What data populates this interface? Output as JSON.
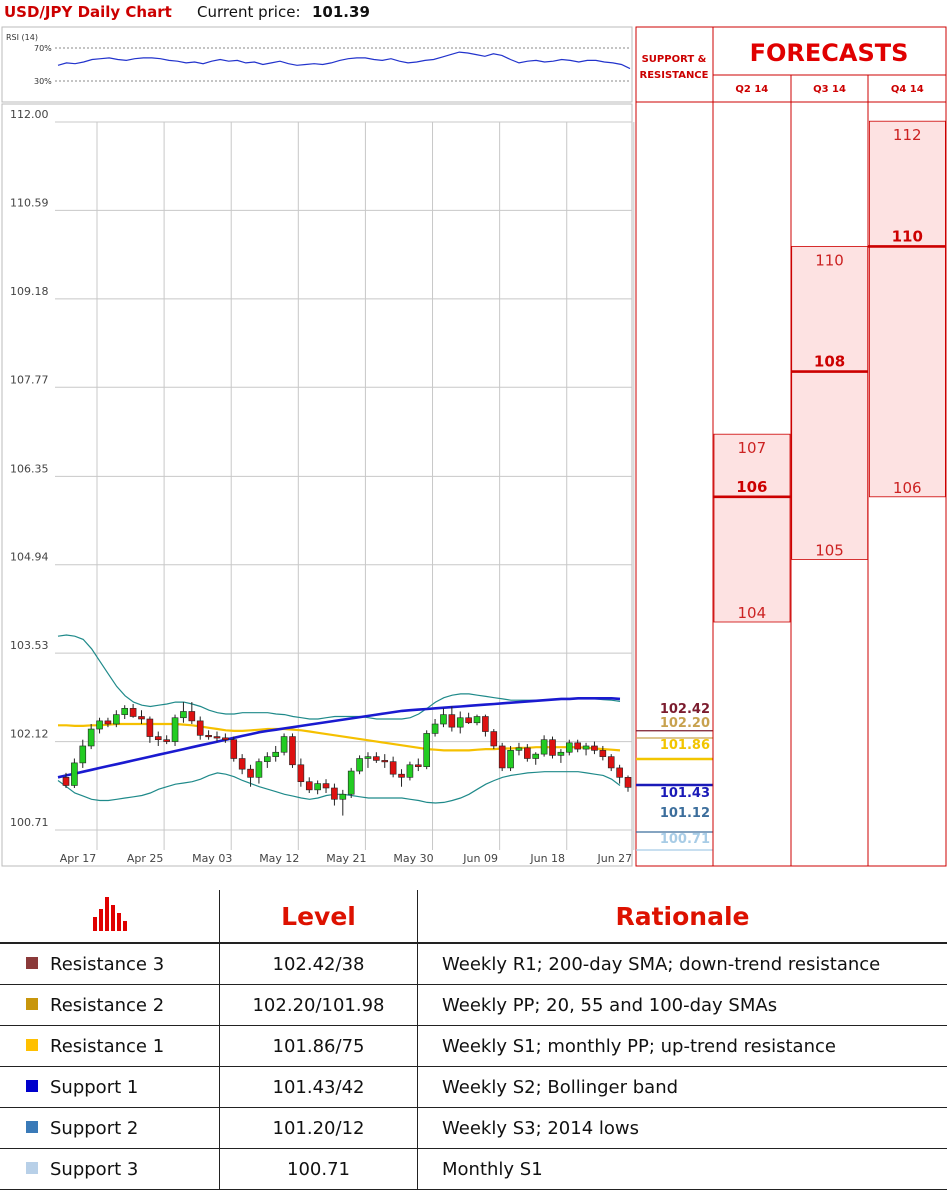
{
  "header": {
    "title": "USD/JPY Daily Chart",
    "price_label": "Current price:",
    "price_value": "101.39"
  },
  "rsi": {
    "label": "RSI (14)",
    "upper": "70%",
    "lower": "30%",
    "values": [
      49,
      52,
      51,
      53,
      56,
      57,
      58,
      56,
      55,
      57,
      58,
      58,
      57,
      55,
      54,
      52,
      53,
      51,
      54,
      56,
      54,
      55,
      52,
      53,
      50,
      52,
      54,
      51,
      49,
      50,
      51,
      50,
      52,
      55,
      57,
      58,
      58,
      56,
      55,
      57,
      54,
      52,
      53,
      55,
      56,
      59,
      62,
      65,
      64,
      62,
      60,
      63,
      61,
      56,
      52,
      54,
      55,
      53,
      54,
      56,
      55,
      53,
      55,
      55,
      53,
      52,
      50,
      45
    ]
  },
  "chart_data": {
    "type": "candlestick",
    "title": "USD/JPY Daily Chart",
    "y_ticks": [
      "112.00",
      "110.59",
      "109.18",
      "107.77",
      "106.35",
      "104.94",
      "103.53",
      "102.12",
      "100.71"
    ],
    "ylim": [
      100.71,
      112.0
    ],
    "x_ticks": [
      "Apr 17",
      "Apr 25",
      "May 03",
      "May 12",
      "May 21",
      "May 30",
      "Jun 09",
      "Jun 18",
      "Jun 27"
    ],
    "candles": [
      {
        "o": 101.55,
        "h": 101.62,
        "l": 101.38,
        "c": 101.42
      },
      {
        "o": 101.42,
        "h": 101.85,
        "l": 101.38,
        "c": 101.78
      },
      {
        "o": 101.78,
        "h": 102.15,
        "l": 101.7,
        "c": 102.05
      },
      {
        "o": 102.05,
        "h": 102.4,
        "l": 102.0,
        "c": 102.32
      },
      {
        "o": 102.32,
        "h": 102.5,
        "l": 102.25,
        "c": 102.45
      },
      {
        "o": 102.45,
        "h": 102.5,
        "l": 102.35,
        "c": 102.4
      },
      {
        "o": 102.4,
        "h": 102.62,
        "l": 102.35,
        "c": 102.55
      },
      {
        "o": 102.55,
        "h": 102.7,
        "l": 102.48,
        "c": 102.65
      },
      {
        "o": 102.65,
        "h": 102.72,
        "l": 102.5,
        "c": 102.52
      },
      {
        "o": 102.52,
        "h": 102.62,
        "l": 102.4,
        "c": 102.48
      },
      {
        "o": 102.48,
        "h": 102.52,
        "l": 102.1,
        "c": 102.2
      },
      {
        "o": 102.2,
        "h": 102.28,
        "l": 102.05,
        "c": 102.15
      },
      {
        "o": 102.15,
        "h": 102.22,
        "l": 102.08,
        "c": 102.12
      },
      {
        "o": 102.12,
        "h": 102.55,
        "l": 102.05,
        "c": 102.5
      },
      {
        "o": 102.5,
        "h": 102.75,
        "l": 102.42,
        "c": 102.6
      },
      {
        "o": 102.6,
        "h": 102.75,
        "l": 102.4,
        "c": 102.45
      },
      {
        "o": 102.45,
        "h": 102.52,
        "l": 102.15,
        "c": 102.22
      },
      {
        "o": 102.22,
        "h": 102.3,
        "l": 102.15,
        "c": 102.2
      },
      {
        "o": 102.2,
        "h": 102.28,
        "l": 102.12,
        "c": 102.18
      },
      {
        "o": 102.18,
        "h": 102.25,
        "l": 102.1,
        "c": 102.15
      },
      {
        "o": 102.15,
        "h": 102.2,
        "l": 101.8,
        "c": 101.85
      },
      {
        "o": 101.85,
        "h": 101.92,
        "l": 101.6,
        "c": 101.68
      },
      {
        "o": 101.68,
        "h": 101.75,
        "l": 101.4,
        "c": 101.55
      },
      {
        "o": 101.55,
        "h": 101.85,
        "l": 101.45,
        "c": 101.8
      },
      {
        "o": 101.8,
        "h": 101.95,
        "l": 101.7,
        "c": 101.88
      },
      {
        "o": 101.88,
        "h": 102.05,
        "l": 101.8,
        "c": 101.95
      },
      {
        "o": 101.95,
        "h": 102.25,
        "l": 101.9,
        "c": 102.2
      },
      {
        "o": 102.2,
        "h": 102.25,
        "l": 101.7,
        "c": 101.75
      },
      {
        "o": 101.75,
        "h": 101.85,
        "l": 101.4,
        "c": 101.48
      },
      {
        "o": 101.48,
        "h": 101.55,
        "l": 101.3,
        "c": 101.35
      },
      {
        "o": 101.35,
        "h": 101.5,
        "l": 101.28,
        "c": 101.45
      },
      {
        "o": 101.45,
        "h": 101.52,
        "l": 101.3,
        "c": 101.38
      },
      {
        "o": 101.38,
        "h": 101.45,
        "l": 101.1,
        "c": 101.2
      },
      {
        "o": 101.2,
        "h": 101.35,
        "l": 100.94,
        "c": 101.28
      },
      {
        "o": 101.28,
        "h": 101.7,
        "l": 101.22,
        "c": 101.65
      },
      {
        "o": 101.65,
        "h": 101.9,
        "l": 101.6,
        "c": 101.85
      },
      {
        "o": 101.85,
        "h": 101.95,
        "l": 101.7,
        "c": 101.88
      },
      {
        "o": 101.88,
        "h": 101.95,
        "l": 101.78,
        "c": 101.82
      },
      {
        "o": 101.82,
        "h": 101.92,
        "l": 101.7,
        "c": 101.8
      },
      {
        "o": 101.8,
        "h": 101.88,
        "l": 101.55,
        "c": 101.6
      },
      {
        "o": 101.6,
        "h": 101.68,
        "l": 101.4,
        "c": 101.55
      },
      {
        "o": 101.55,
        "h": 101.8,
        "l": 101.5,
        "c": 101.75
      },
      {
        "o": 101.75,
        "h": 101.85,
        "l": 101.65,
        "c": 101.72
      },
      {
        "o": 101.72,
        "h": 102.3,
        "l": 101.68,
        "c": 102.25
      },
      {
        "o": 102.25,
        "h": 102.48,
        "l": 102.2,
        "c": 102.4
      },
      {
        "o": 102.4,
        "h": 102.65,
        "l": 102.35,
        "c": 102.55
      },
      {
        "o": 102.55,
        "h": 102.68,
        "l": 102.28,
        "c": 102.35
      },
      {
        "o": 102.35,
        "h": 102.6,
        "l": 102.25,
        "c": 102.5
      },
      {
        "o": 102.5,
        "h": 102.58,
        "l": 102.4,
        "c": 102.42
      },
      {
        "o": 102.42,
        "h": 102.55,
        "l": 102.38,
        "c": 102.52
      },
      {
        "o": 102.52,
        "h": 102.55,
        "l": 102.2,
        "c": 102.28
      },
      {
        "o": 102.28,
        "h": 102.32,
        "l": 102.0,
        "c": 102.05
      },
      {
        "o": 102.05,
        "h": 102.1,
        "l": 101.65,
        "c": 101.7
      },
      {
        "o": 101.7,
        "h": 102.05,
        "l": 101.65,
        "c": 101.98
      },
      {
        "o": 101.98,
        "h": 102.1,
        "l": 101.9,
        "c": 102.02
      },
      {
        "o": 102.02,
        "h": 102.08,
        "l": 101.8,
        "c": 101.85
      },
      {
        "o": 101.85,
        "h": 101.95,
        "l": 101.75,
        "c": 101.92
      },
      {
        "o": 101.92,
        "h": 102.22,
        "l": 101.88,
        "c": 102.15
      },
      {
        "o": 102.15,
        "h": 102.2,
        "l": 101.85,
        "c": 101.9
      },
      {
        "o": 101.9,
        "h": 102.0,
        "l": 101.78,
        "c": 101.95
      },
      {
        "o": 101.95,
        "h": 102.15,
        "l": 101.9,
        "c": 102.1
      },
      {
        "o": 102.1,
        "h": 102.15,
        "l": 101.95,
        "c": 102.0
      },
      {
        "o": 102.0,
        "h": 102.1,
        "l": 101.9,
        "c": 102.05
      },
      {
        "o": 102.05,
        "h": 102.12,
        "l": 101.92,
        "c": 101.98
      },
      {
        "o": 101.98,
        "h": 102.05,
        "l": 101.82,
        "c": 101.88
      },
      {
        "o": 101.88,
        "h": 101.92,
        "l": 101.65,
        "c": 101.7
      },
      {
        "o": 101.7,
        "h": 101.75,
        "l": 101.45,
        "c": 101.55
      },
      {
        "o": 101.55,
        "h": 101.58,
        "l": 101.32,
        "c": 101.39
      }
    ],
    "sma_200": [
      101.55,
      101.58,
      101.61,
      101.64,
      101.67,
      101.7,
      101.73,
      101.76,
      101.79,
      101.82,
      101.85,
      101.88,
      101.91,
      101.94,
      101.97,
      102.0,
      102.03,
      102.06,
      102.09,
      102.12,
      102.15,
      102.18,
      102.21,
      102.24,
      102.27,
      102.29,
      102.31,
      102.33,
      102.35,
      102.37,
      102.39,
      102.41,
      102.43,
      102.45,
      102.47,
      102.49,
      102.51,
      102.53,
      102.55,
      102.57,
      102.59,
      102.61,
      102.62,
      102.63,
      102.64,
      102.65,
      102.66,
      102.67,
      102.68,
      102.69,
      102.7,
      102.71,
      102.72,
      102.73,
      102.74,
      102.75,
      102.76,
      102.77,
      102.78,
      102.79,
      102.8,
      102.8,
      102.81,
      102.81,
      102.81,
      102.81,
      102.81,
      102.8
    ],
    "sma_yellow": [
      102.38,
      102.38,
      102.37,
      102.37,
      102.38,
      102.38,
      102.39,
      102.4,
      102.4,
      102.4,
      102.4,
      102.4,
      102.4,
      102.4,
      102.4,
      102.39,
      102.38,
      102.36,
      102.34,
      102.32,
      102.3,
      102.29,
      102.29,
      102.3,
      102.31,
      102.32,
      102.32,
      102.32,
      102.31,
      102.3,
      102.28,
      102.26,
      102.24,
      102.22,
      102.2,
      102.18,
      102.16,
      102.14,
      102.12,
      102.1,
      102.08,
      102.06,
      102.04,
      102.02,
      102.0,
      101.99,
      101.98,
      101.98,
      101.98,
      101.98,
      101.99,
      102.0,
      102.0,
      102.01,
      102.01,
      102.02,
      102.02,
      102.03,
      102.03,
      102.03,
      102.03,
      102.03,
      102.03,
      102.02,
      102.01,
      102.0,
      101.99,
      101.98
    ],
    "bb_upper": [
      103.8,
      103.82,
      103.8,
      103.75,
      103.6,
      103.4,
      103.2,
      103.0,
      102.85,
      102.75,
      102.7,
      102.68,
      102.7,
      102.72,
      102.75,
      102.75,
      102.72,
      102.68,
      102.62,
      102.58,
      102.56,
      102.56,
      102.58,
      102.58,
      102.58,
      102.58,
      102.56,
      102.55,
      102.52,
      102.5,
      102.48,
      102.48,
      102.5,
      102.52,
      102.52,
      102.52,
      102.52,
      102.5,
      102.48,
      102.48,
      102.48,
      102.48,
      102.5,
      102.56,
      102.65,
      102.75,
      102.82,
      102.86,
      102.88,
      102.88,
      102.86,
      102.84,
      102.82,
      102.8,
      102.78,
      102.78,
      102.78,
      102.78,
      102.78,
      102.79,
      102.8,
      102.8,
      102.8,
      102.8,
      102.8,
      102.79,
      102.78,
      102.76
    ],
    "bb_lower": [
      101.5,
      101.4,
      101.3,
      101.25,
      101.2,
      101.18,
      101.18,
      101.2,
      101.22,
      101.24,
      101.26,
      101.3,
      101.36,
      101.4,
      101.44,
      101.46,
      101.48,
      101.52,
      101.58,
      101.62,
      101.6,
      101.56,
      101.5,
      101.45,
      101.4,
      101.36,
      101.32,
      101.28,
      101.25,
      101.22,
      101.2,
      101.22,
      101.26,
      101.28,
      101.28,
      101.26,
      101.24,
      101.22,
      101.22,
      101.22,
      101.22,
      101.22,
      101.2,
      101.18,
      101.15,
      101.14,
      101.15,
      101.18,
      101.22,
      101.28,
      101.36,
      101.44,
      101.5,
      101.55,
      101.58,
      101.6,
      101.62,
      101.63,
      101.64,
      101.64,
      101.64,
      101.64,
      101.64,
      101.62,
      101.6,
      101.58,
      101.52,
      101.42
    ],
    "sr_labels": [
      {
        "label": "102.42",
        "value": 102.42,
        "color": "#7b1c2e"
      },
      {
        "label": "102.20",
        "value": 102.2,
        "color": "#c8a24f"
      },
      {
        "label": "101.86",
        "value": 101.86,
        "color": "#f2c500"
      },
      {
        "label": "101.43",
        "value": 101.43,
        "color": "#1a1ab8"
      },
      {
        "label": "101.12",
        "value": 101.12,
        "color": "#3c6e9c"
      },
      {
        "label": "100.71",
        "value": 100.71,
        "color": "#a8cce6"
      }
    ]
  },
  "forecasts": {
    "title": "FORECASTS",
    "sr_header_line1": "SUPPORT &",
    "sr_header_line2": "RESISTANCE",
    "columns": [
      {
        "quarter": "Q2 14",
        "high": "107",
        "mid": "106",
        "low": "104",
        "high_v": 107,
        "mid_v": 106,
        "low_v": 104
      },
      {
        "quarter": "Q3 14",
        "high": "110",
        "mid": "108",
        "low": "105",
        "high_v": 110,
        "mid_v": 108,
        "low_v": 105
      },
      {
        "quarter": "Q4 14",
        "high": "112",
        "mid": "110",
        "low": "106",
        "high_v": 112,
        "mid_v": 110,
        "low_v": 106
      }
    ]
  },
  "levels_table": {
    "header_level": "Level",
    "header_rationale": "Rationale",
    "rows": [
      {
        "name": "Resistance 3",
        "level": "102.42/38",
        "rationale": "Weekly R1; 200-day SMA; down-trend resistance",
        "color": "#8b3a3a"
      },
      {
        "name": "Resistance 2",
        "level": "102.20/101.98",
        "rationale": "Weekly PP; 20, 55 and 100-day SMAs",
        "color": "#c8960c"
      },
      {
        "name": "Resistance 1",
        "level": "101.86/75",
        "rationale": "Weekly S1; monthly PP; up-trend resistance",
        "color": "#ffc000"
      },
      {
        "name": "Support 1",
        "level": "101.43/42",
        "rationale": "Weekly S2; Bollinger band",
        "color": "#0000cc"
      },
      {
        "name": "Support 2",
        "level": "101.20/12",
        "rationale": "Weekly S3; 2014 lows",
        "color": "#3a7ab8"
      },
      {
        "name": "Support 3",
        "level": "100.71",
        "rationale": "Monthly S1",
        "color": "#b8d0e8"
      }
    ]
  }
}
